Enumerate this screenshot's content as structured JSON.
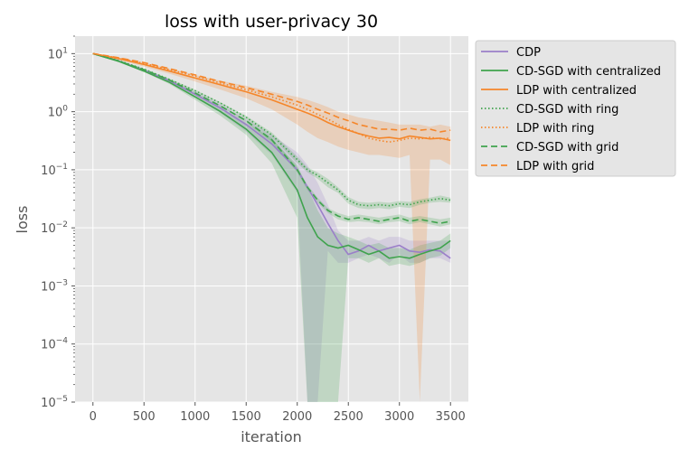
{
  "chart_data": {
    "type": "line",
    "title": "loss with user-privacy  30",
    "xlabel": "iteration",
    "ylabel": "loss",
    "xlim": [
      -175,
      3675
    ],
    "ylim": [
      1e-05,
      20
    ],
    "yscale": "log",
    "grid": true,
    "legend_position": "outside-right-top",
    "x_ticks": [
      0,
      500,
      1000,
      1500,
      2000,
      2500,
      3000,
      3500
    ],
    "x_tick_labels": [
      "0",
      "500",
      "1000",
      "1500",
      "2000",
      "2500",
      "3000",
      "3500"
    ],
    "y_ticks": [
      1e-05,
      0.0001,
      0.001,
      0.01,
      0.1,
      1,
      10
    ],
    "y_tick_labels": [
      {
        "base": "10",
        "exp": "−5"
      },
      {
        "base": "10",
        "exp": "−4"
      },
      {
        "base": "10",
        "exp": "−3"
      },
      {
        "base": "10",
        "exp": "−2"
      },
      {
        "base": "10",
        "exp": "−1"
      },
      {
        "base": "10",
        "exp": "0"
      },
      {
        "base": "10",
        "exp": "1"
      }
    ],
    "x": [
      0,
      250,
      500,
      750,
      1000,
      1250,
      1500,
      1750,
      2000,
      2100,
      2200,
      2300,
      2400,
      2500,
      2600,
      2700,
      2800,
      2900,
      3000,
      3100,
      3200,
      3300,
      3400,
      3500
    ],
    "series": [
      {
        "name": "CDP",
        "color": "#9b7fc9",
        "dash": "solid",
        "values": [
          10,
          7.5,
          5.2,
          3.4,
          2.0,
          1.15,
          0.6,
          0.28,
          0.1,
          0.05,
          0.025,
          0.012,
          0.006,
          0.0035,
          0.004,
          0.005,
          0.004,
          0.0045,
          0.005,
          0.004,
          0.0038,
          0.0042,
          0.004,
          0.003
        ],
        "band_lower": [
          10,
          7.3,
          5.0,
          3.2,
          1.8,
          0.95,
          0.45,
          0.18,
          0.04,
          1e-05,
          1e-05,
          0.004,
          0.0025,
          0.0025,
          0.003,
          0.0035,
          0.003,
          0.0025,
          0.0035,
          0.0025,
          0.0025,
          0.003,
          0.003,
          0.0025
        ],
        "band_upper": [
          10,
          7.7,
          5.4,
          3.6,
          2.2,
          1.35,
          0.75,
          0.4,
          0.2,
          0.12,
          0.06,
          0.025,
          0.009,
          0.006,
          0.006,
          0.007,
          0.006,
          0.007,
          0.007,
          0.006,
          0.006,
          0.006,
          0.006,
          0.006
        ]
      },
      {
        "name": "CD-SGD with centralized",
        "color": "#3fa34d",
        "dash": "solid",
        "values": [
          10,
          7.4,
          5.0,
          3.2,
          1.8,
          1.0,
          0.5,
          0.2,
          0.045,
          0.015,
          0.007,
          0.005,
          0.0045,
          0.005,
          0.0042,
          0.0035,
          0.004,
          0.003,
          0.0032,
          0.003,
          0.0035,
          0.004,
          0.0045,
          0.006
        ],
        "band_lower": [
          10,
          7.2,
          4.8,
          3.0,
          1.6,
          0.85,
          0.4,
          0.13,
          0.015,
          1e-05,
          1e-05,
          1e-05,
          1e-05,
          0.003,
          0.003,
          0.0025,
          0.003,
          0.0022,
          0.0024,
          0.0022,
          0.0025,
          0.003,
          0.0033,
          0.0045
        ],
        "band_upper": [
          10,
          7.6,
          5.2,
          3.4,
          2.0,
          1.2,
          0.65,
          0.35,
          0.12,
          0.05,
          0.02,
          0.01,
          0.008,
          0.007,
          0.006,
          0.005,
          0.0055,
          0.0045,
          0.0045,
          0.0042,
          0.005,
          0.0055,
          0.006,
          0.008
        ]
      },
      {
        "name": "LDP with centralized",
        "color": "#f5862a",
        "dash": "solid",
        "values": [
          10,
          8.2,
          6.5,
          5.0,
          3.8,
          2.9,
          2.2,
          1.6,
          1.1,
          0.95,
          0.8,
          0.65,
          0.55,
          0.48,
          0.42,
          0.38,
          0.35,
          0.36,
          0.34,
          0.38,
          0.36,
          0.34,
          0.35,
          0.32
        ],
        "band_lower": [
          10,
          7.8,
          6.0,
          4.5,
          3.3,
          2.4,
          1.7,
          1.1,
          0.6,
          0.45,
          0.35,
          0.3,
          0.25,
          0.22,
          0.2,
          0.18,
          0.18,
          0.17,
          0.16,
          0.18,
          1e-05,
          0.15,
          0.15,
          0.12
        ],
        "band_upper": [
          10,
          8.6,
          7.0,
          5.5,
          4.3,
          3.4,
          2.8,
          2.2,
          1.8,
          1.6,
          1.4,
          1.2,
          1.0,
          0.9,
          0.8,
          0.75,
          0.7,
          0.65,
          0.6,
          0.6,
          0.6,
          0.55,
          0.6,
          0.55
        ]
      },
      {
        "name": "CD-SGD with ring",
        "color": "#3fa34d",
        "dash": "dotted",
        "values": [
          10,
          7.6,
          5.4,
          3.6,
          2.3,
          1.4,
          0.8,
          0.4,
          0.15,
          0.1,
          0.08,
          0.06,
          0.045,
          0.03,
          0.025,
          0.024,
          0.025,
          0.024,
          0.026,
          0.025,
          0.028,
          0.03,
          0.032,
          0.03
        ],
        "band_lower": [
          10,
          7.5,
          5.3,
          3.5,
          2.2,
          1.35,
          0.75,
          0.36,
          0.13,
          0.09,
          0.07,
          0.05,
          0.04,
          0.026,
          0.022,
          0.021,
          0.022,
          0.021,
          0.023,
          0.022,
          0.025,
          0.027,
          0.028,
          0.027
        ],
        "band_upper": [
          10,
          7.7,
          5.5,
          3.7,
          2.4,
          1.45,
          0.85,
          0.44,
          0.17,
          0.11,
          0.09,
          0.07,
          0.05,
          0.034,
          0.028,
          0.027,
          0.028,
          0.027,
          0.029,
          0.028,
          0.031,
          0.033,
          0.036,
          0.033
        ]
      },
      {
        "name": "LDP with ring",
        "color": "#f5862a",
        "dash": "dotted",
        "values": [
          10,
          8.4,
          6.8,
          5.3,
          4.1,
          3.1,
          2.4,
          1.8,
          1.3,
          1.1,
          0.9,
          0.75,
          0.6,
          0.5,
          0.42,
          0.35,
          0.32,
          0.3,
          0.32,
          0.35,
          0.34,
          0.36,
          0.34,
          0.35
        ]
      },
      {
        "name": "CD-SGD with grid",
        "color": "#3fa34d",
        "dash": "dashed",
        "values": [
          10,
          7.5,
          5.3,
          3.5,
          2.1,
          1.25,
          0.7,
          0.33,
          0.1,
          0.05,
          0.03,
          0.02,
          0.016,
          0.014,
          0.015,
          0.014,
          0.013,
          0.014,
          0.015,
          0.013,
          0.014,
          0.013,
          0.012,
          0.013
        ],
        "band_lower": [
          10,
          7.4,
          5.2,
          3.4,
          2.0,
          1.2,
          0.66,
          0.3,
          0.09,
          0.045,
          0.027,
          0.018,
          0.014,
          0.0125,
          0.013,
          0.0125,
          0.0115,
          0.0125,
          0.013,
          0.0115,
          0.0125,
          0.0115,
          0.0105,
          0.0115
        ],
        "band_upper": [
          10,
          7.6,
          5.4,
          3.6,
          2.2,
          1.3,
          0.74,
          0.36,
          0.11,
          0.055,
          0.033,
          0.022,
          0.018,
          0.016,
          0.017,
          0.016,
          0.015,
          0.016,
          0.017,
          0.015,
          0.016,
          0.015,
          0.014,
          0.015
        ]
      },
      {
        "name": "LDP with grid",
        "color": "#f5862a",
        "dash": "dashed",
        "values": [
          10,
          8.5,
          7.0,
          5.5,
          4.3,
          3.3,
          2.6,
          2.0,
          1.5,
          1.3,
          1.1,
          0.95,
          0.8,
          0.7,
          0.6,
          0.55,
          0.5,
          0.5,
          0.48,
          0.52,
          0.48,
          0.5,
          0.45,
          0.48
        ]
      }
    ]
  }
}
